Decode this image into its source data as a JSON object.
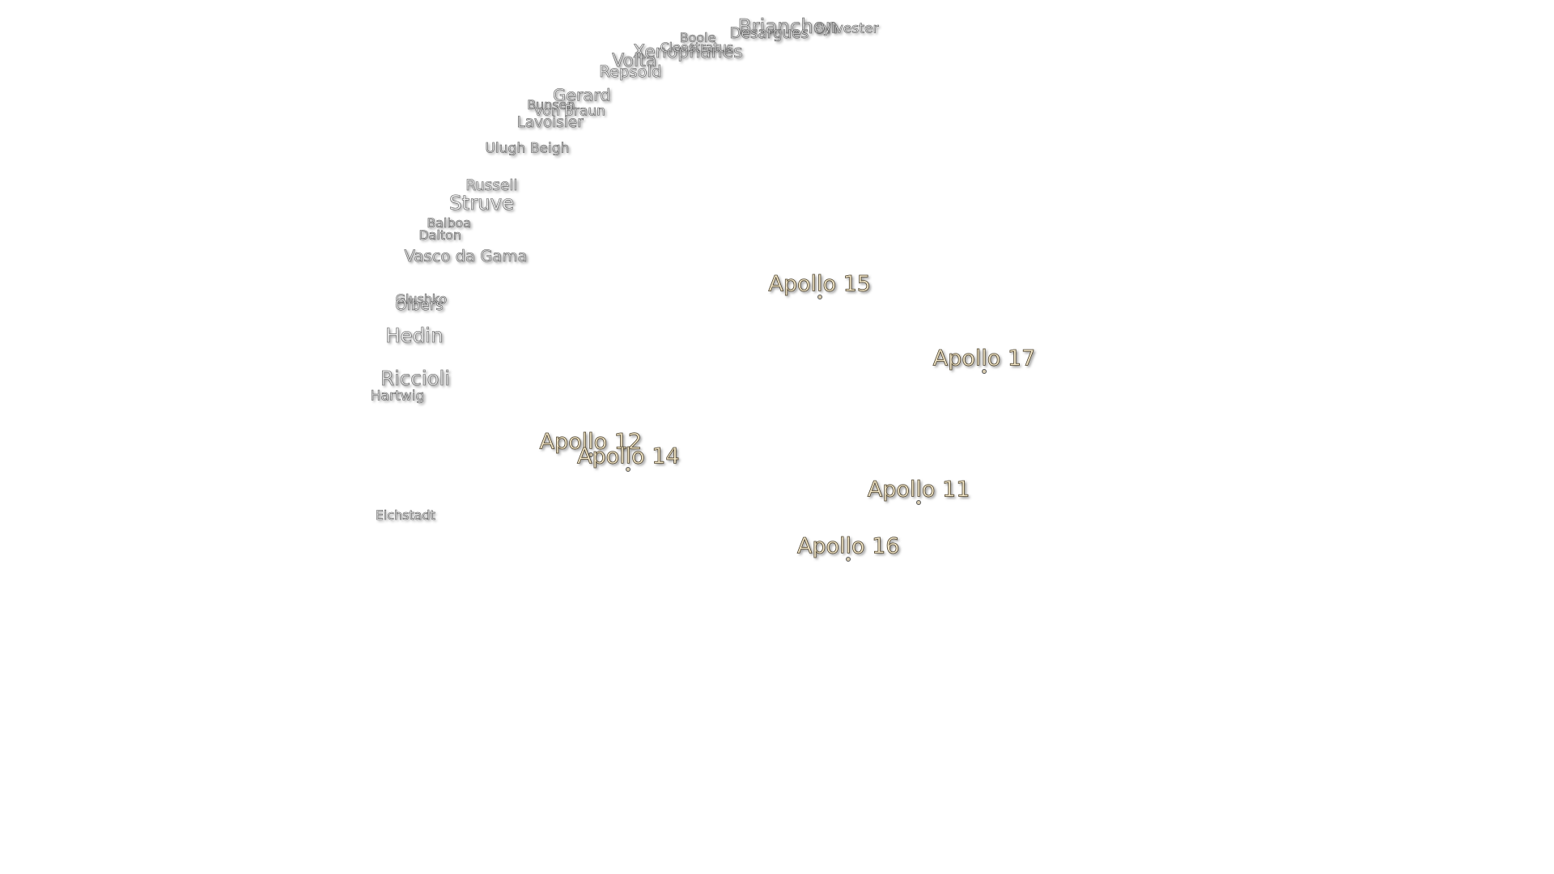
{
  "crater_labels": [
    "Brianchon",
    "Desargues",
    "Sylvester",
    "Boole",
    "Xenophanes",
    "Cleostratus",
    "Volta",
    "Repsold",
    "Gerard",
    "Bunsen",
    "von Braun",
    "Lavoisier",
    "Ulugh Beigh",
    "Russell",
    "Struve",
    "Balboa",
    "Dalton",
    "Vasco da Gama",
    "Glushko",
    "Olbers",
    "Hedin",
    "Riccioli",
    "Hartwig",
    "Eichstadt"
  ],
  "landing_sites": [
    "Apollo 15",
    "Apollo 17",
    "Apollo 12",
    "Apollo 14",
    "Apollo 11",
    "Apollo 16"
  ]
}
